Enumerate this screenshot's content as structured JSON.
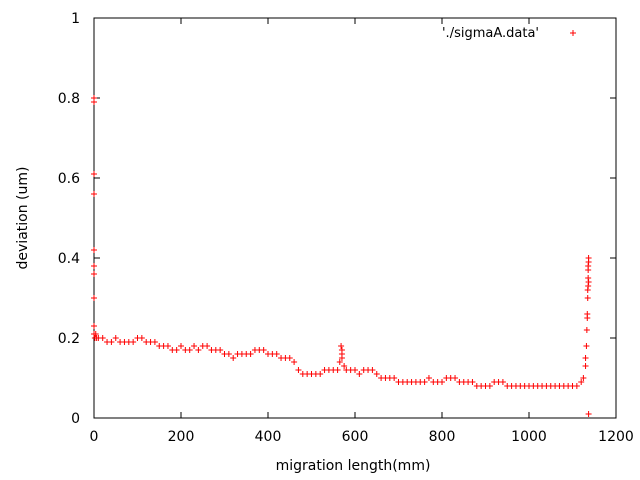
{
  "chart_data": {
    "type": "scatter",
    "title": "",
    "xlabel": "migration length(mm)",
    "ylabel": "deviation (um)",
    "xlim": [
      0,
      1200
    ],
    "ylim": [
      0,
      1
    ],
    "x_ticks": [
      "0",
      "200",
      "400",
      "600",
      "800",
      "1000",
      "1200"
    ],
    "y_ticks": [
      "0",
      "0.2",
      "0.4",
      "0.6",
      "0.8",
      "1"
    ],
    "grid": false,
    "legend_position": "top-right",
    "marker": "plus",
    "series": [
      {
        "name": "'./sigmaA.data'",
        "color": "#ff0000",
        "x": [
          0,
          0,
          0,
          0,
          0,
          0,
          0,
          0,
          0,
          0,
          2,
          4,
          6,
          10,
          20,
          30,
          40,
          50,
          60,
          70,
          80,
          90,
          100,
          110,
          120,
          130,
          140,
          150,
          160,
          170,
          180,
          190,
          200,
          210,
          220,
          230,
          240,
          250,
          260,
          270,
          280,
          290,
          300,
          310,
          320,
          330,
          340,
          350,
          360,
          370,
          380,
          390,
          400,
          410,
          420,
          430,
          440,
          450,
          460,
          470,
          480,
          490,
          500,
          510,
          520,
          530,
          540,
          550,
          560,
          565,
          568,
          570,
          570,
          570,
          575,
          580,
          590,
          600,
          610,
          620,
          630,
          640,
          650,
          660,
          670,
          680,
          690,
          700,
          710,
          720,
          730,
          740,
          750,
          760,
          770,
          780,
          790,
          800,
          810,
          820,
          830,
          840,
          850,
          860,
          870,
          880,
          890,
          900,
          910,
          920,
          930,
          940,
          950,
          960,
          970,
          980,
          990,
          1000,
          1010,
          1020,
          1030,
          1040,
          1050,
          1060,
          1070,
          1080,
          1090,
          1100,
          1110,
          1120,
          1125,
          1130,
          1130,
          1132,
          1133,
          1134,
          1134,
          1135,
          1135,
          1136,
          1136,
          1136,
          1136,
          1137,
          1137,
          1137,
          1137
        ],
        "y": [
          0.8,
          0.79,
          0.61,
          0.56,
          0.42,
          0.38,
          0.36,
          0.3,
          0.23,
          0.21,
          0.2,
          0.21,
          0.2,
          0.2,
          0.2,
          0.19,
          0.19,
          0.2,
          0.19,
          0.19,
          0.19,
          0.19,
          0.2,
          0.2,
          0.19,
          0.19,
          0.19,
          0.18,
          0.18,
          0.18,
          0.17,
          0.17,
          0.18,
          0.17,
          0.17,
          0.18,
          0.17,
          0.18,
          0.18,
          0.17,
          0.17,
          0.17,
          0.16,
          0.16,
          0.15,
          0.16,
          0.16,
          0.16,
          0.16,
          0.17,
          0.17,
          0.17,
          0.16,
          0.16,
          0.16,
          0.15,
          0.15,
          0.15,
          0.14,
          0.12,
          0.11,
          0.11,
          0.11,
          0.11,
          0.11,
          0.12,
          0.12,
          0.12,
          0.12,
          0.14,
          0.18,
          0.16,
          0.17,
          0.15,
          0.13,
          0.12,
          0.12,
          0.12,
          0.11,
          0.12,
          0.12,
          0.12,
          0.11,
          0.1,
          0.1,
          0.1,
          0.1,
          0.09,
          0.09,
          0.09,
          0.09,
          0.09,
          0.09,
          0.09,
          0.1,
          0.09,
          0.09,
          0.09,
          0.1,
          0.1,
          0.1,
          0.09,
          0.09,
          0.09,
          0.09,
          0.08,
          0.08,
          0.08,
          0.08,
          0.09,
          0.09,
          0.09,
          0.08,
          0.08,
          0.08,
          0.08,
          0.08,
          0.08,
          0.08,
          0.08,
          0.08,
          0.08,
          0.08,
          0.08,
          0.08,
          0.08,
          0.08,
          0.08,
          0.08,
          0.09,
          0.1,
          0.13,
          0.15,
          0.18,
          0.22,
          0.25,
          0.26,
          0.3,
          0.32,
          0.33,
          0.35,
          0.37,
          0.38,
          0.39,
          0.4,
          0.01,
          0.34
        ]
      }
    ]
  }
}
